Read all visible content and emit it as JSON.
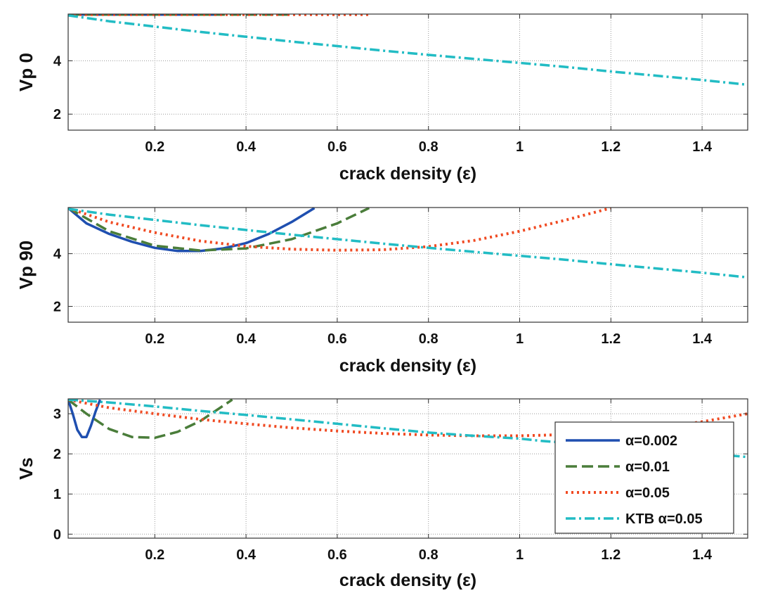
{
  "chart_data": [
    {
      "type": "line",
      "xlabel": "crack density (ε)",
      "ylabel": "Vp 0",
      "xlim": [
        0.01,
        1.5
      ],
      "ylim": [
        1.4,
        5.75
      ],
      "xticks": [
        0.2,
        0.4,
        0.6,
        0.8,
        1,
        1.2,
        1.4
      ],
      "xtick_labels": [
        "0.2",
        "0.4",
        "0.6",
        "0.8",
        "1",
        "1.2",
        "1.4"
      ],
      "yticks": [
        2,
        4
      ],
      "ytick_labels": [
        "2",
        "4"
      ],
      "grid": true,
      "series": [
        {
          "key": "a002",
          "x": [
            0.01,
            0.35
          ],
          "y": [
            5.73,
            5.73
          ]
        },
        {
          "key": "a01",
          "x": [
            0.01,
            0.5
          ],
          "y": [
            5.73,
            5.73
          ]
        },
        {
          "key": "a05",
          "x": [
            0.01,
            0.67
          ],
          "y": [
            5.73,
            5.73
          ]
        },
        {
          "key": "ktb",
          "x": [
            0.01,
            0.1,
            0.2,
            0.3,
            0.4,
            0.5,
            0.6,
            0.7,
            0.8,
            0.9,
            1.0,
            1.1,
            1.2,
            1.3,
            1.4,
            1.5
          ],
          "y": [
            5.7,
            5.48,
            5.28,
            5.08,
            4.9,
            4.72,
            4.55,
            4.38,
            4.22,
            4.07,
            3.92,
            3.77,
            3.6,
            3.44,
            3.28,
            3.1
          ]
        }
      ]
    },
    {
      "type": "line",
      "xlabel": "crack density (ε)",
      "ylabel": "Vp 90",
      "xlim": [
        0.01,
        1.5
      ],
      "ylim": [
        1.4,
        5.75
      ],
      "xticks": [
        0.2,
        0.4,
        0.6,
        0.8,
        1,
        1.2,
        1.4
      ],
      "xtick_labels": [
        "0.2",
        "0.4",
        "0.6",
        "0.8",
        "1",
        "1.2",
        "1.4"
      ],
      "yticks": [
        2,
        4
      ],
      "ytick_labels": [
        "2",
        "4"
      ],
      "grid": true,
      "series": [
        {
          "key": "a002",
          "x": [
            0.01,
            0.05,
            0.1,
            0.15,
            0.2,
            0.25,
            0.3,
            0.35,
            0.4,
            0.45,
            0.5,
            0.55
          ],
          "y": [
            5.73,
            5.15,
            4.75,
            4.45,
            4.22,
            4.1,
            4.1,
            4.2,
            4.4,
            4.75,
            5.2,
            5.73
          ]
        },
        {
          "key": "a01",
          "x": [
            0.01,
            0.1,
            0.2,
            0.3,
            0.4,
            0.5,
            0.6,
            0.67
          ],
          "y": [
            5.73,
            4.85,
            4.3,
            4.12,
            4.2,
            4.55,
            5.15,
            5.73
          ]
        },
        {
          "key": "a05",
          "x": [
            0.01,
            0.1,
            0.2,
            0.3,
            0.4,
            0.5,
            0.6,
            0.7,
            0.8,
            0.9,
            1.0,
            1.1,
            1.2
          ],
          "y": [
            5.73,
            5.2,
            4.8,
            4.48,
            4.28,
            4.17,
            4.13,
            4.15,
            4.27,
            4.5,
            4.85,
            5.27,
            5.73
          ]
        },
        {
          "key": "ktb",
          "x": [
            0.01,
            0.1,
            0.2,
            0.3,
            0.4,
            0.5,
            0.6,
            0.7,
            0.8,
            0.9,
            1.0,
            1.1,
            1.2,
            1.3,
            1.4,
            1.5
          ],
          "y": [
            5.7,
            5.48,
            5.28,
            5.08,
            4.9,
            4.72,
            4.55,
            4.38,
            4.22,
            4.07,
            3.92,
            3.77,
            3.6,
            3.44,
            3.28,
            3.1
          ]
        }
      ]
    },
    {
      "type": "line",
      "xlabel": "crack density (ε)",
      "ylabel": "Vs",
      "xlim": [
        0.01,
        1.5
      ],
      "ylim": [
        -0.1,
        3.37
      ],
      "xticks": [
        0.2,
        0.4,
        0.6,
        0.8,
        1,
        1.2,
        1.4
      ],
      "xtick_labels": [
        "0.2",
        "0.4",
        "0.6",
        "0.8",
        "1",
        "1.2",
        "1.4"
      ],
      "yticks": [
        0,
        1,
        2,
        3
      ],
      "ytick_labels": [
        "0",
        "1",
        "2",
        "3"
      ],
      "grid": true,
      "legend": "right",
      "series": [
        {
          "key": "a002",
          "x": [
            0.01,
            0.02,
            0.03,
            0.04,
            0.05,
            0.06,
            0.07,
            0.08
          ],
          "y": [
            3.35,
            3.0,
            2.6,
            2.42,
            2.42,
            2.7,
            3.05,
            3.35
          ]
        },
        {
          "key": "a01",
          "x": [
            0.01,
            0.05,
            0.1,
            0.15,
            0.2,
            0.25,
            0.3,
            0.35,
            0.37
          ],
          "y": [
            3.35,
            3.0,
            2.62,
            2.42,
            2.4,
            2.55,
            2.82,
            3.2,
            3.35
          ]
        },
        {
          "key": "a05",
          "x": [
            0.01,
            0.1,
            0.2,
            0.3,
            0.4,
            0.5,
            0.6,
            0.7,
            0.8,
            0.9,
            1.0,
            1.1,
            1.2,
            1.3,
            1.4,
            1.5
          ],
          "y": [
            3.35,
            3.15,
            3.0,
            2.86,
            2.75,
            2.65,
            2.57,
            2.51,
            2.47,
            2.45,
            2.45,
            2.48,
            2.55,
            2.65,
            2.8,
            3.0
          ]
        },
        {
          "key": "ktb",
          "x": [
            0.01,
            0.1,
            0.2,
            0.3,
            0.4,
            0.5,
            0.6,
            0.7,
            0.8,
            0.9,
            1.0,
            1.05,
            1.1,
            1.2,
            1.3,
            1.4,
            1.5
          ],
          "y": [
            3.35,
            3.28,
            3.18,
            3.07,
            2.97,
            2.86,
            2.75,
            2.64,
            2.53,
            2.45,
            2.38,
            2.32,
            2.28,
            2.2,
            2.12,
            2.02,
            1.92
          ]
        }
      ]
    }
  ],
  "legend": {
    "entries": [
      {
        "key": "a002",
        "label": "α=0.002"
      },
      {
        "key": "a01",
        "label": "α=0.01"
      },
      {
        "key": "a05",
        "label": "α=0.05"
      },
      {
        "key": "ktb",
        "label": "KTB α=0.05"
      }
    ]
  },
  "series_styles": {
    "a002": {
      "color": "#1f4fb0",
      "style": "solid"
    },
    "a01": {
      "color": "#4a7d3a",
      "style": "dashed"
    },
    "a05": {
      "color": "#f04a22",
      "style": "dotted"
    },
    "ktb": {
      "color": "#22bcc4",
      "style": "dashdot"
    }
  }
}
